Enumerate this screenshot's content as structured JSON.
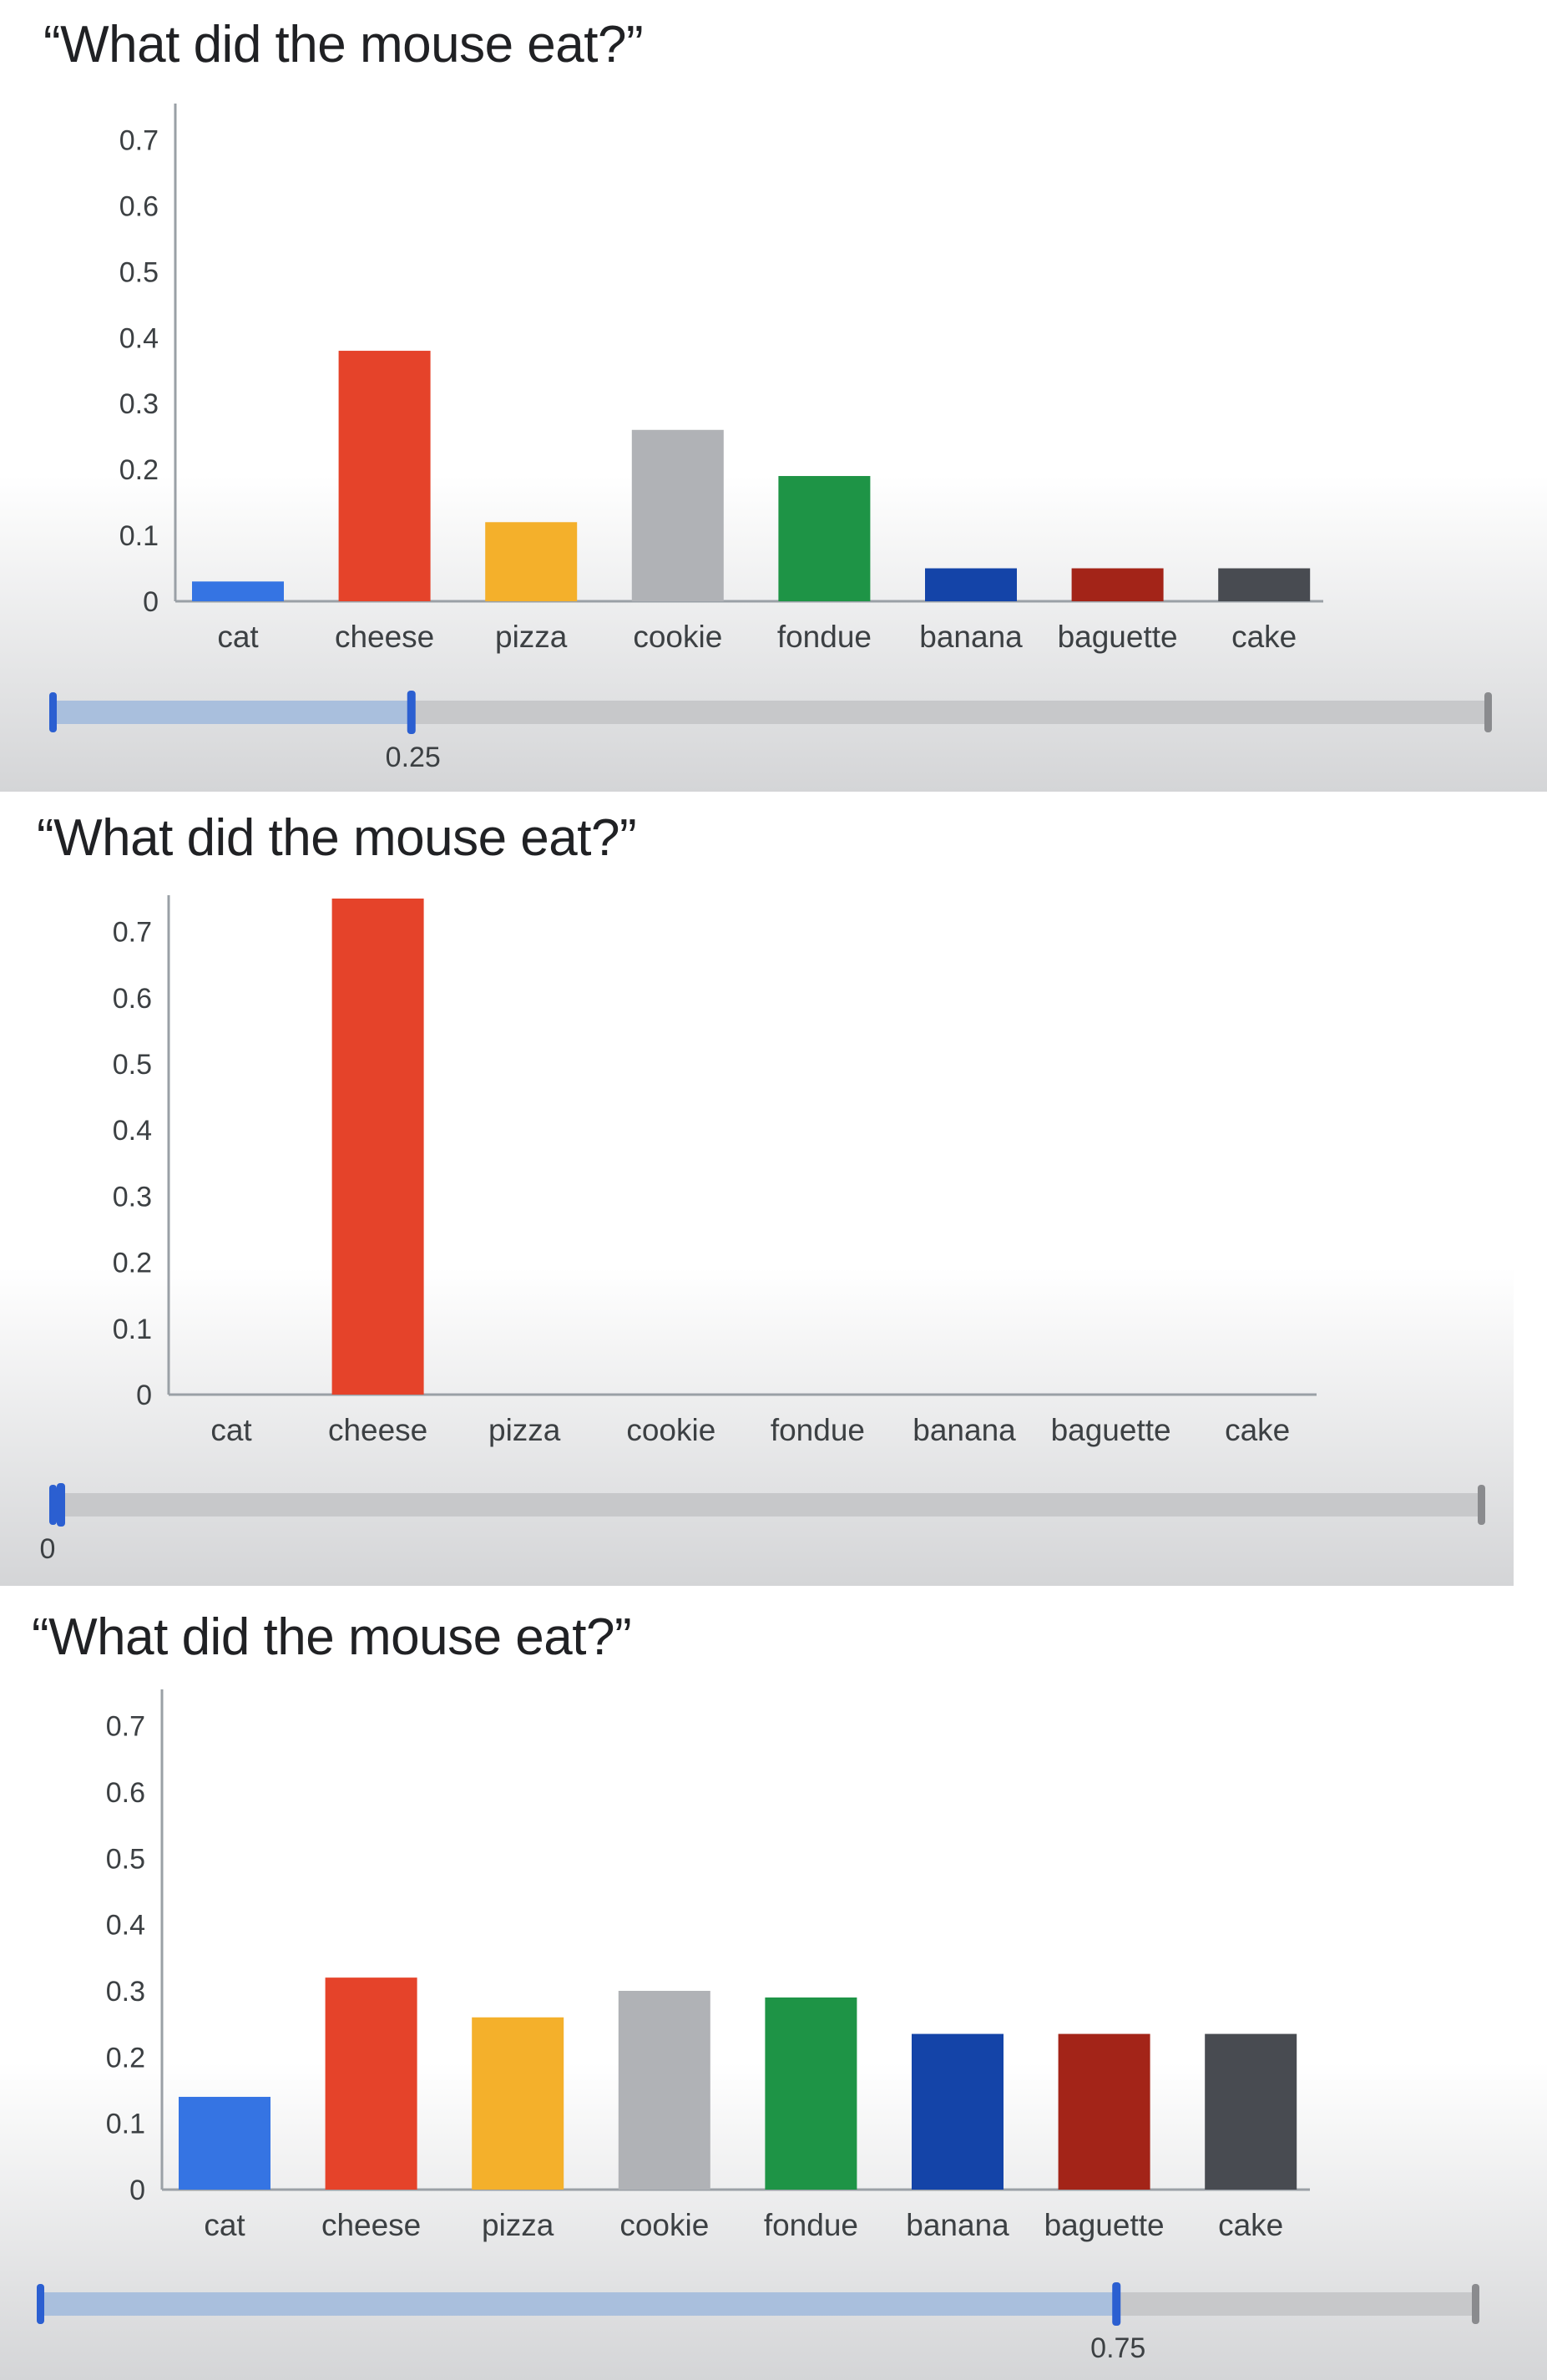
{
  "colors": {
    "cat": "#3574e3",
    "cheese": "#e5432a",
    "pizza": "#f4b02b",
    "cookie": "#b0b2b6",
    "fondue": "#1e9446",
    "banana": "#1444a8",
    "baguette": "#a32418",
    "cake": "#484b51",
    "slider_handle": "#2b5fd1",
    "slider_fill": "#a9bfdd",
    "slider_track": "#c7c8ca",
    "slider_end": "#8a8b8e",
    "panel_gradient_bottom": "#d4d5d7"
  },
  "panels": [
    {
      "title": "“What did the mouse eat?”",
      "slider": {
        "value": 0.25,
        "value_label": "0.25"
      }
    },
    {
      "title": "“What did the mouse eat?”",
      "slider": {
        "value": 0,
        "value_label": "0"
      }
    },
    {
      "title": "“What did the mouse eat?”",
      "slider": {
        "value": 0.75,
        "value_label": "0.75"
      }
    }
  ],
  "chart_data": [
    {
      "type": "bar",
      "title": "“What did the mouse eat?”",
      "categories": [
        "cat",
        "cheese",
        "pizza",
        "cookie",
        "fondue",
        "banana",
        "baguette",
        "cake"
      ],
      "values": [
        0.03,
        0.38,
        0.12,
        0.26,
        0.19,
        0.05,
        0.05,
        0.05
      ],
      "ylim": [
        0,
        0.75
      ],
      "yticks": [
        0,
        0.1,
        0.2,
        0.3,
        0.4,
        0.5,
        0.6,
        0.7
      ],
      "ytick_labels": [
        "0",
        "0.1",
        "0.2",
        "0.3",
        "0.4",
        "0.5",
        "0.6",
        "0.7"
      ],
      "xlabel": "",
      "ylabel": "",
      "grid": false
    },
    {
      "type": "bar",
      "title": "“What did the mouse eat?”",
      "categories": [
        "cat",
        "cheese",
        "pizza",
        "cookie",
        "fondue",
        "banana",
        "baguette",
        "cake"
      ],
      "values": [
        0,
        0.75,
        0,
        0,
        0,
        0,
        0,
        0
      ],
      "ylim": [
        0,
        0.75
      ],
      "yticks": [
        0,
        0.1,
        0.2,
        0.3,
        0.4,
        0.5,
        0.6,
        0.7
      ],
      "ytick_labels": [
        "0",
        "0.1",
        "0.2",
        "0.3",
        "0.4",
        "0.5",
        "0.6",
        "0.7"
      ],
      "xlabel": "",
      "ylabel": "",
      "grid": false
    },
    {
      "type": "bar",
      "title": "“What did the mouse eat?”",
      "categories": [
        "cat",
        "cheese",
        "pizza",
        "cookie",
        "fondue",
        "banana",
        "baguette",
        "cake"
      ],
      "values": [
        0.14,
        0.32,
        0.26,
        0.3,
        0.29,
        0.235,
        0.235,
        0.235
      ],
      "ylim": [
        0,
        0.75
      ],
      "yticks": [
        0,
        0.1,
        0.2,
        0.3,
        0.4,
        0.5,
        0.6,
        0.7
      ],
      "ytick_labels": [
        "0",
        "0.1",
        "0.2",
        "0.3",
        "0.4",
        "0.5",
        "0.6",
        "0.7"
      ],
      "xlabel": "",
      "ylabel": "",
      "grid": false
    }
  ]
}
